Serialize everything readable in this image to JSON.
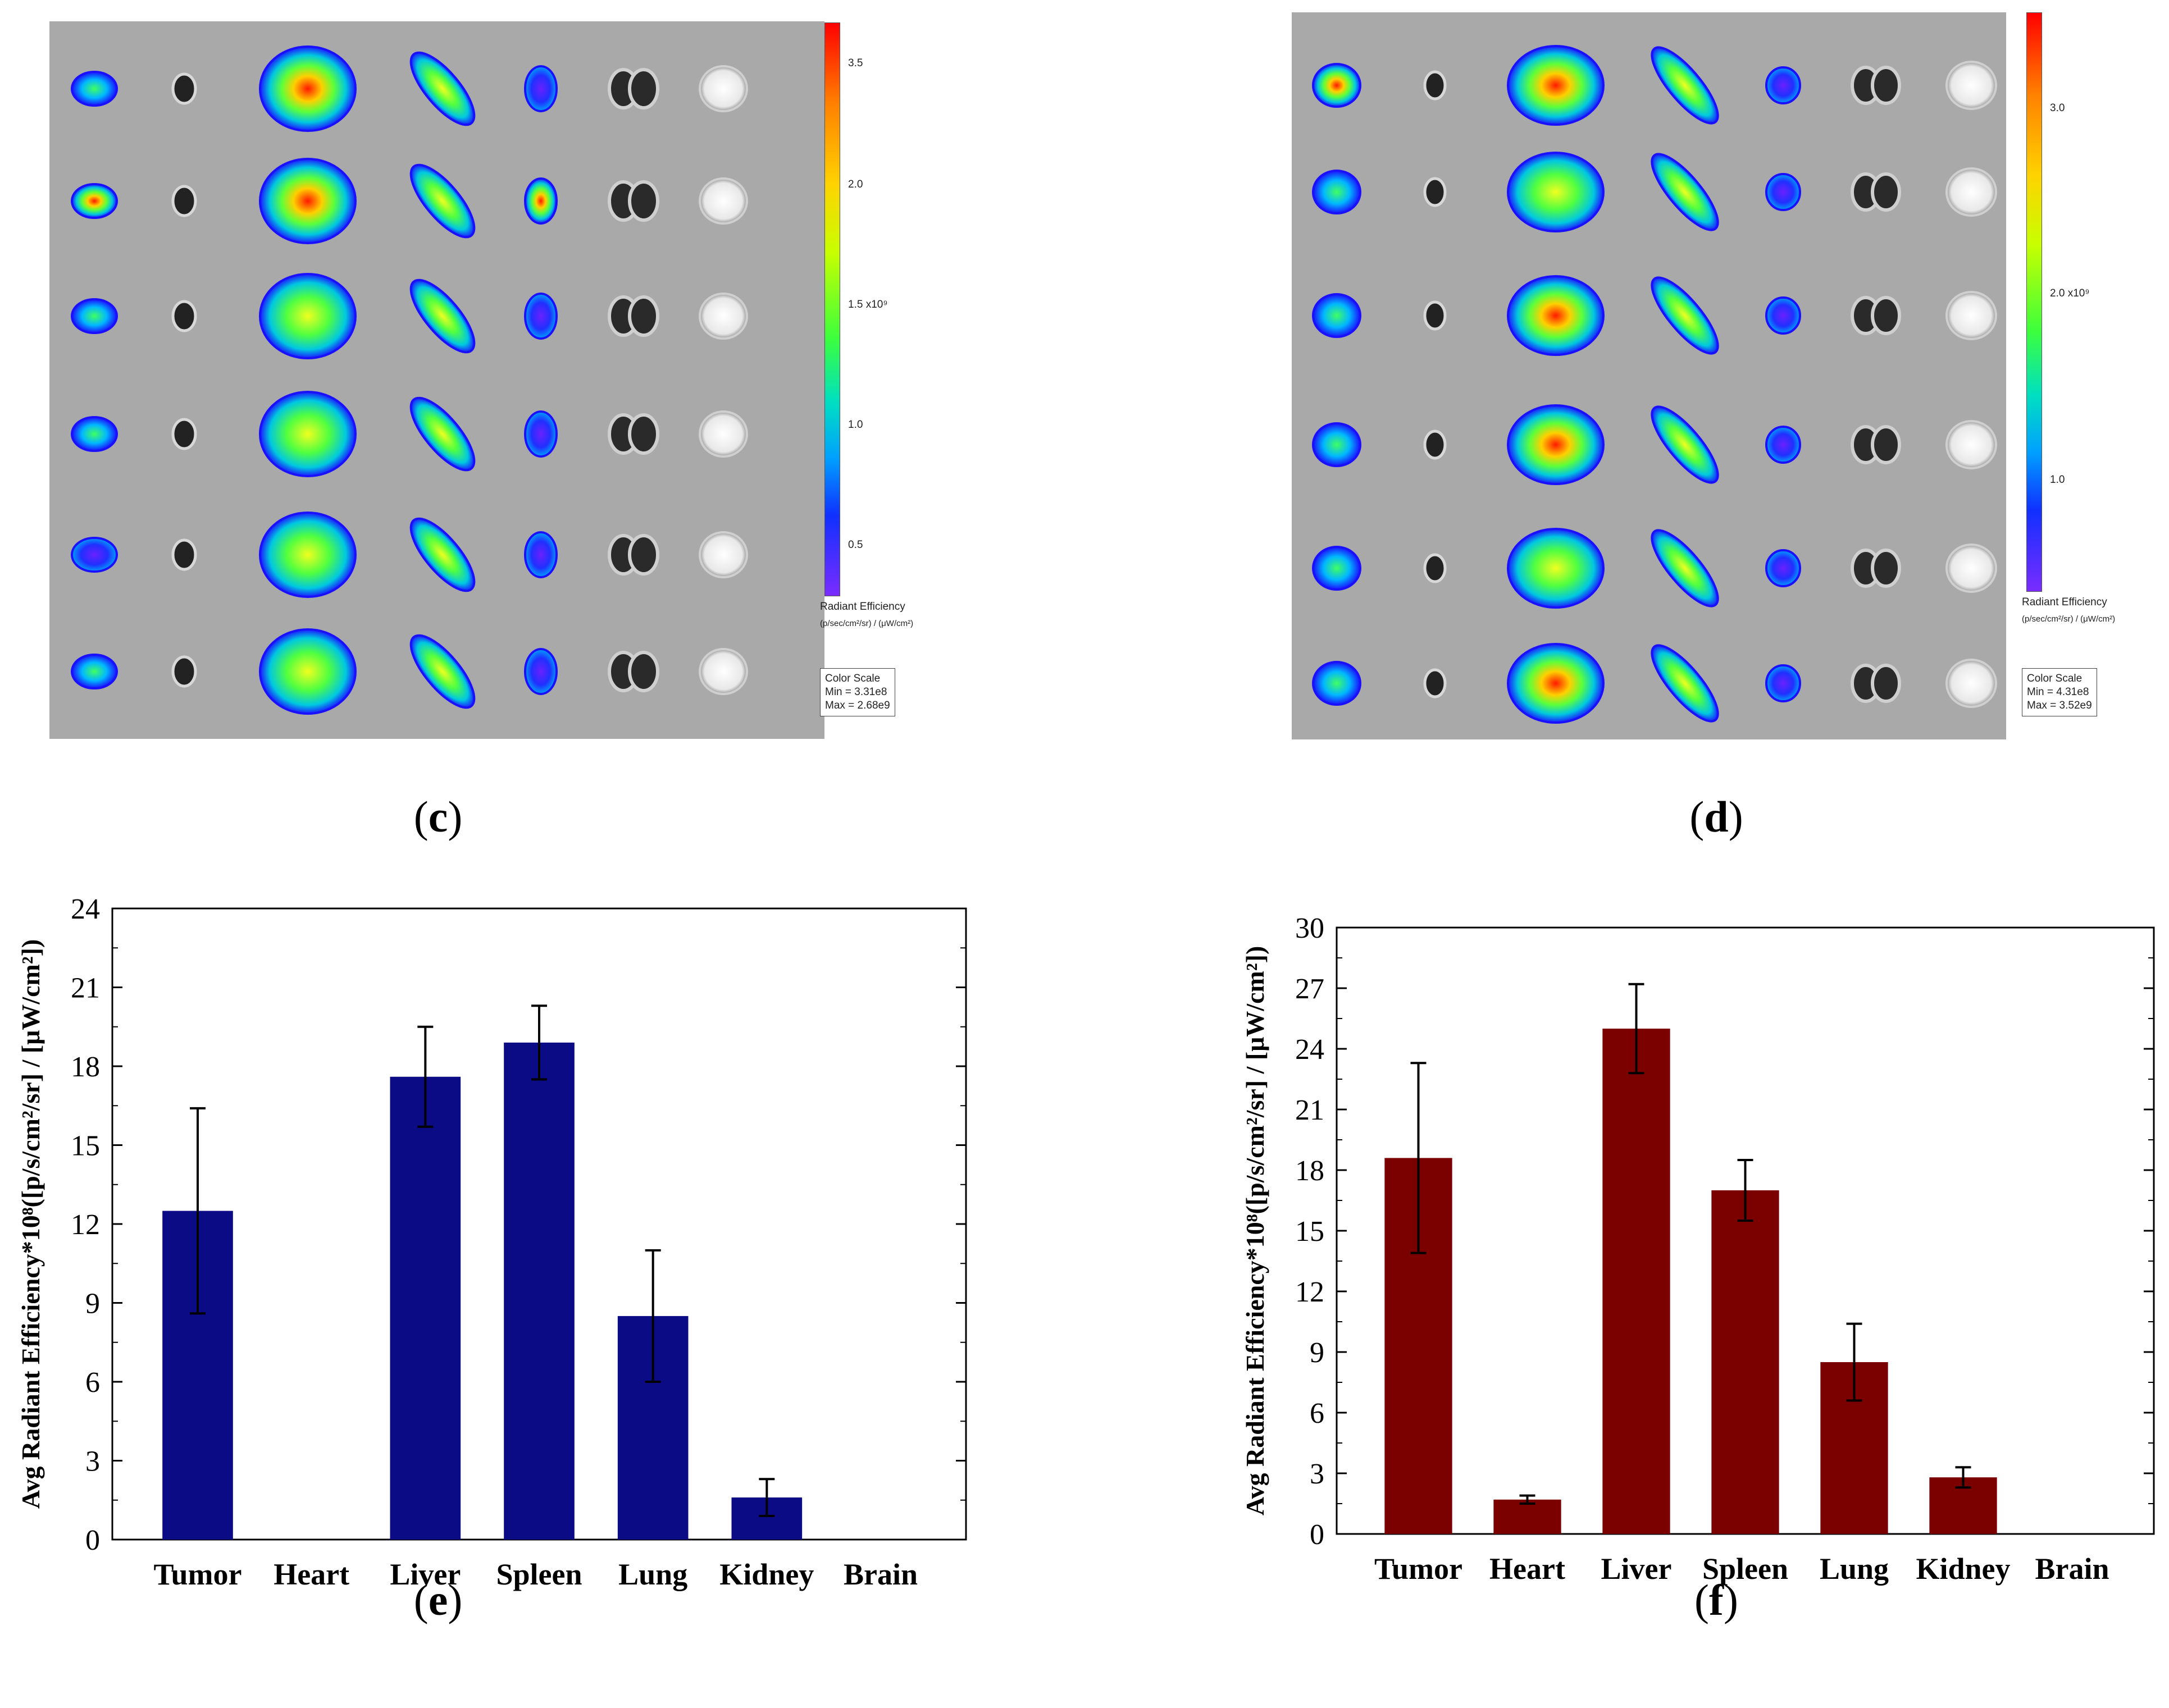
{
  "panel_labels": {
    "c": {
      "open": "(",
      "letter": "c",
      "close": ")"
    },
    "d": {
      "open": "(",
      "letter": "d",
      "close": ")"
    },
    "e": {
      "open": "(",
      "letter": "e",
      "close": ")"
    },
    "f": {
      "open": "(",
      "letter": "f",
      "close": ")"
    }
  },
  "colors": {
    "bar_e": "#0b0b85",
    "bar_f": "#7b0000",
    "image_bg": "#a9a9a9"
  },
  "image_c": {
    "scale": {
      "ticks": [
        "3.5",
        "2.0",
        "1.5 x10⁹",
        "1.0",
        "0.5"
      ],
      "title": "Radiant Efficiency",
      "units": "(p/sec/cm²/sr) / (μW/cm²)",
      "box": "Color Scale\nMin = 3.31e8\nMax = 2.68e9"
    }
  },
  "image_d": {
    "scale": {
      "ticks": [
        "3.0",
        "2.0 x10⁹",
        "1.0"
      ],
      "title": "Radiant Efficiency",
      "units": "(p/sec/cm²/sr) / (μW/cm²)",
      "box": "Color Scale\nMin = 4.31e8\nMax = 3.52e9"
    }
  },
  "chart_data": [
    {
      "id": "e",
      "type": "bar",
      "ylabel": "Avg Radiant Efficiency*10⁸([p/s/cm²/sr] / [μW/cm²])",
      "categories": [
        "Tumor",
        "Heart",
        "Liver",
        "Spleen",
        "Lung",
        "Kidney",
        "Brain"
      ],
      "values": [
        12.5,
        0,
        17.6,
        18.9,
        8.5,
        1.6,
        0
      ],
      "errors": [
        3.9,
        0,
        1.9,
        1.4,
        2.5,
        0.7,
        0
      ],
      "ylim": [
        0,
        24
      ],
      "yticks": [
        "0",
        "3",
        "6",
        "9",
        "12",
        "15",
        "18",
        "21",
        "24"
      ]
    },
    {
      "id": "f",
      "type": "bar",
      "ylabel": "Avg Radiant Efficiency*10⁸([p/s/cm²/sr] / [μW/cm²])",
      "categories": [
        "Tumor",
        "Heart",
        "Liver",
        "Spleen",
        "Lung",
        "Kidney",
        "Brain"
      ],
      "values": [
        18.6,
        1.7,
        25.0,
        17.0,
        8.5,
        2.8,
        0
      ],
      "errors": [
        4.7,
        0.2,
        2.2,
        1.5,
        1.9,
        0.5,
        0
      ],
      "ylim": [
        0,
        30
      ],
      "yticks": [
        "0",
        "3",
        "6",
        "9",
        "12",
        "15",
        "18",
        "21",
        "24",
        "27",
        "30"
      ]
    }
  ]
}
